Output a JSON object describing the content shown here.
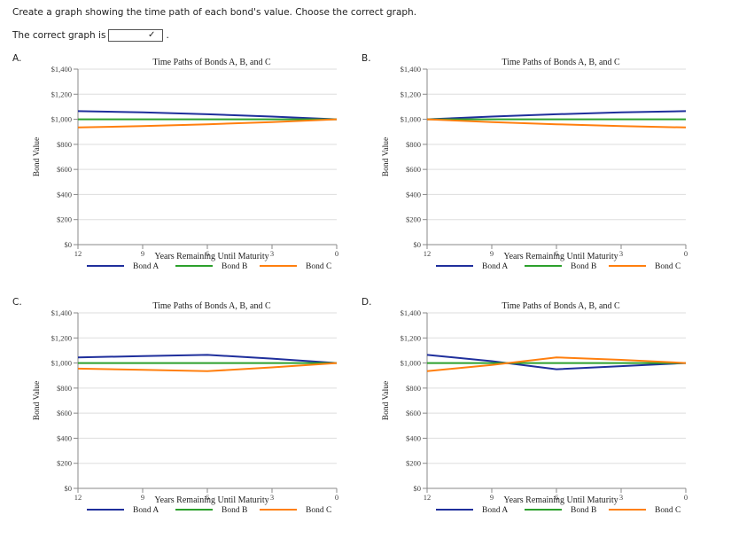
{
  "question": {
    "prompt": "Create a graph showing the time path of each bond's value. Choose the correct graph.",
    "answer_label": "The correct graph is",
    "answer_value": "",
    "answer_suffix": "."
  },
  "colors": {
    "bond_a": "#1f2f9c",
    "bond_b": "#2ca02c",
    "bond_c": "#ff7f0e",
    "grid": "#dddddd",
    "axis": "#888888"
  },
  "chart_data": [
    {
      "option": "A.",
      "type": "line",
      "title": "Time Paths of Bonds A, B, and C",
      "xlabel": "Years Remaining Until Maturity",
      "ylabel": "Bond Value",
      "xlim": [
        12,
        0
      ],
      "ylim": [
        0,
        1400
      ],
      "x_ticks": [
        12,
        9,
        6,
        3,
        0
      ],
      "y_ticks": [
        "$0",
        "$200",
        "$400",
        "$600",
        "$800",
        "$1,000",
        "$1,200",
        "$1,400"
      ],
      "legend_position": "bottom",
      "series": [
        {
          "name": "Bond A",
          "x": [
            12,
            9,
            6,
            3,
            0
          ],
          "values": [
            1065,
            1055,
            1040,
            1022,
            1000
          ]
        },
        {
          "name": "Bond B",
          "x": [
            12,
            9,
            6,
            3,
            0
          ],
          "values": [
            1000,
            1000,
            1000,
            1000,
            1000
          ]
        },
        {
          "name": "Bond C",
          "x": [
            12,
            9,
            6,
            3,
            0
          ],
          "values": [
            935,
            945,
            960,
            978,
            1000
          ]
        }
      ]
    },
    {
      "option": "B.",
      "type": "line",
      "title": "Time Paths of Bonds A, B, and C",
      "xlabel": "Years Remaining Until Maturity",
      "ylabel": "Bond Value",
      "xlim": [
        12,
        0
      ],
      "ylim": [
        0,
        1400
      ],
      "x_ticks": [
        12,
        9,
        6,
        3,
        0
      ],
      "y_ticks": [
        "$0",
        "$200",
        "$400",
        "$600",
        "$800",
        "$1,000",
        "$1,200",
        "$1,400"
      ],
      "legend_position": "bottom",
      "series": [
        {
          "name": "Bond A",
          "x": [
            12,
            9,
            6,
            3,
            0
          ],
          "values": [
            1000,
            1022,
            1040,
            1055,
            1065
          ]
        },
        {
          "name": "Bond B",
          "x": [
            12,
            9,
            6,
            3,
            0
          ],
          "values": [
            1000,
            1000,
            1000,
            1000,
            1000
          ]
        },
        {
          "name": "Bond C",
          "x": [
            12,
            9,
            6,
            3,
            0
          ],
          "values": [
            1000,
            978,
            960,
            945,
            935
          ]
        }
      ]
    },
    {
      "option": "C.",
      "type": "line",
      "title": "Time Paths of Bonds A, B, and C",
      "xlabel": "Years Remaining Until Maturity",
      "ylabel": "Bond Value",
      "xlim": [
        12,
        0
      ],
      "ylim": [
        0,
        1400
      ],
      "x_ticks": [
        12,
        9,
        6,
        3,
        0
      ],
      "y_ticks": [
        "$0",
        "$200",
        "$400",
        "$600",
        "$800",
        "$1,000",
        "$1,200",
        "$1,400"
      ],
      "legend_position": "bottom",
      "series": [
        {
          "name": "Bond A",
          "x": [
            12,
            9,
            6,
            3,
            0
          ],
          "values": [
            1045,
            1055,
            1065,
            1035,
            1000
          ]
        },
        {
          "name": "Bond B",
          "x": [
            12,
            9,
            6,
            3,
            0
          ],
          "values": [
            1000,
            1000,
            1000,
            1000,
            1000
          ]
        },
        {
          "name": "Bond C",
          "x": [
            12,
            9,
            6,
            3,
            0
          ],
          "values": [
            955,
            945,
            935,
            965,
            1000
          ]
        }
      ]
    },
    {
      "option": "D.",
      "type": "line",
      "title": "Time Paths of Bonds A, B, and C",
      "xlabel": "Years Remaining Until Maturity",
      "ylabel": "Bond Value",
      "xlim": [
        12,
        0
      ],
      "ylim": [
        0,
        1400
      ],
      "x_ticks": [
        12,
        9,
        6,
        3,
        0
      ],
      "y_ticks": [
        "$0",
        "$200",
        "$400",
        "$600",
        "$800",
        "$1,000",
        "$1,200",
        "$1,400"
      ],
      "legend_position": "bottom",
      "series": [
        {
          "name": "Bond A",
          "x": [
            12,
            9,
            6,
            3,
            0
          ],
          "values": [
            1065,
            1015,
            950,
            975,
            1000
          ]
        },
        {
          "name": "Bond B",
          "x": [
            12,
            9,
            6,
            3,
            0
          ],
          "values": [
            1000,
            1000,
            1000,
            1000,
            1000
          ]
        },
        {
          "name": "Bond C",
          "x": [
            12,
            9,
            6,
            3,
            0
          ],
          "values": [
            935,
            985,
            1045,
            1025,
            1000
          ]
        }
      ]
    }
  ]
}
